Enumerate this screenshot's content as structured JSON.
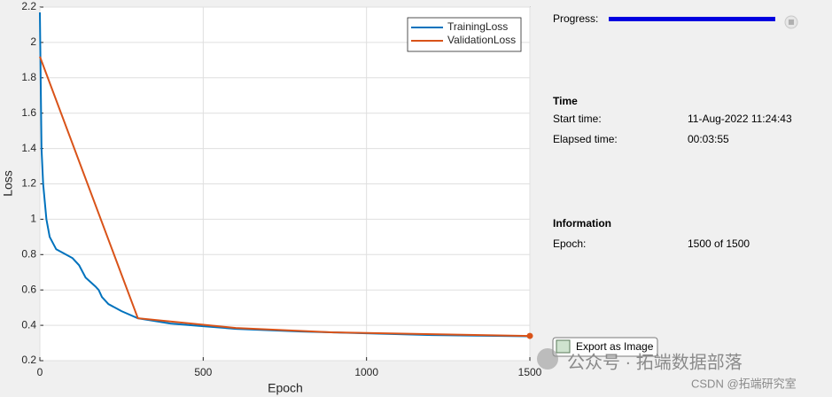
{
  "chart_data": {
    "type": "line",
    "xlabel": "Epoch",
    "ylabel": "Loss",
    "xlim": [
      0,
      1500
    ],
    "xticks": [
      0,
      500,
      1000,
      1500
    ],
    "ylim": [
      0.2,
      2.2
    ],
    "yticks": [
      0.2,
      0.4,
      0.6,
      0.8,
      1,
      1.2,
      1.4,
      1.6,
      1.8,
      2,
      2.2
    ],
    "grid": true,
    "legend": "upper right",
    "series": [
      {
        "name": "TrainingLoss",
        "color": "#0072bd",
        "x": [
          0,
          5,
          10,
          20,
          30,
          50,
          80,
          100,
          120,
          140,
          170,
          180,
          190,
          210,
          250,
          300,
          400,
          500,
          600,
          800,
          1000,
          1200,
          1500
        ],
        "values": [
          2.17,
          1.4,
          1.2,
          1.0,
          0.9,
          0.83,
          0.8,
          0.78,
          0.74,
          0.67,
          0.62,
          0.6,
          0.56,
          0.52,
          0.48,
          0.44,
          0.41,
          0.395,
          0.38,
          0.365,
          0.355,
          0.345,
          0.338
        ]
      },
      {
        "name": "ValidationLoss",
        "color": "#d95319",
        "x": [
          0,
          300,
          600,
          900,
          1200,
          1500
        ],
        "values": [
          1.92,
          0.44,
          0.385,
          0.36,
          0.35,
          0.34
        ]
      }
    ]
  },
  "panel": {
    "progress_label": "Progress:",
    "time_heading": "Time",
    "start_label": "Start time:",
    "start_value": "11-Aug-2022 11:24:43",
    "elapsed_label": "Elapsed time:",
    "elapsed_value": "00:03:55",
    "info_heading": "Information",
    "epoch_label": "Epoch:",
    "epoch_value": "1500 of 1500",
    "export_button": "Export as Image"
  },
  "watermark": {
    "main": "公众号 · 拓端数据部落",
    "sub": "CSDN @拓端研究室"
  }
}
